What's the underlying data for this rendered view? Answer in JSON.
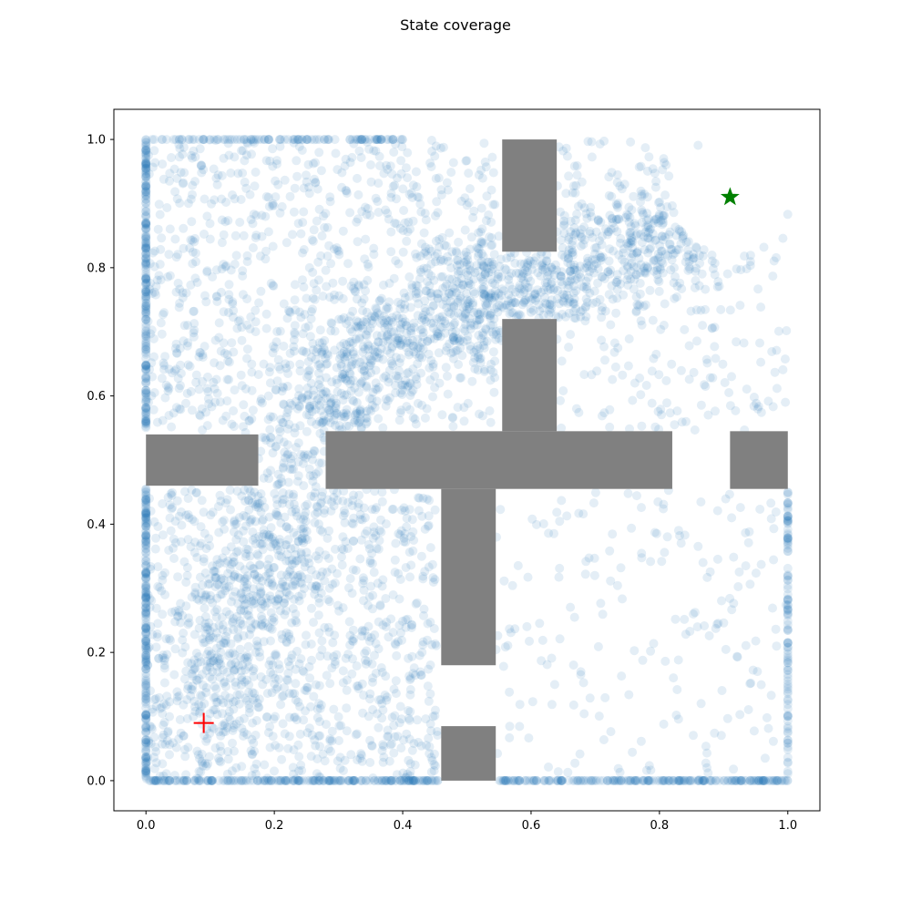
{
  "chart_data": {
    "type": "scatter",
    "title": "State coverage",
    "xlabel": "",
    "ylabel": "",
    "xlim": [
      -0.05,
      1.05
    ],
    "ylim": [
      -0.047,
      1.047
    ],
    "xticks": [
      0.0,
      0.2,
      0.4,
      0.6,
      0.8,
      1.0
    ],
    "xtick_labels": [
      "0.0",
      "0.2",
      "0.4",
      "0.6",
      "0.8",
      "1.0"
    ],
    "yticks": [
      0.0,
      0.2,
      0.4,
      0.6,
      0.8,
      1.0
    ],
    "ytick_labels": [
      "0.0",
      "0.2",
      "0.4",
      "0.6",
      "0.8",
      "1.0"
    ],
    "grid": false,
    "point_color": "#1f77b4",
    "point_alpha": 0.12,
    "obstacle_color": "#808080",
    "obstacles": [
      {
        "x0": 0.0,
        "x1": 0.175,
        "y0": 0.46,
        "y1": 0.54
      },
      {
        "x0": 0.28,
        "x1": 0.82,
        "y0": 0.455,
        "y1": 0.545
      },
      {
        "x0": 0.555,
        "x1": 0.64,
        "y0": 0.825,
        "y1": 1.0
      },
      {
        "x0": 0.555,
        "x1": 0.64,
        "y0": 0.545,
        "y1": 0.72
      },
      {
        "x0": 0.46,
        "x1": 0.545,
        "y0": 0.18,
        "y1": 0.455
      },
      {
        "x0": 0.46,
        "x1": 0.545,
        "y0": 0.0,
        "y1": 0.085
      },
      {
        "x0": 0.91,
        "x1": 1.0,
        "y0": 0.455,
        "y1": 0.545
      }
    ],
    "start": {
      "x": 0.09,
      "y": 0.09,
      "marker": "plus",
      "color": "#ff0000"
    },
    "goal": {
      "x": 0.91,
      "y": 0.91,
      "radius": 0.09,
      "marker": "star",
      "color": "#008000"
    },
    "visit_density": [
      {
        "region": "lower-left room",
        "x0": 0.0,
        "x1": 0.455,
        "y0": 0.0,
        "y1": 0.455,
        "level": "dense"
      },
      {
        "region": "upper-left room",
        "x0": 0.0,
        "x1": 0.545,
        "y0": 0.545,
        "y1": 1.0,
        "level": "dense"
      },
      {
        "region": "upper-right room",
        "x0": 0.64,
        "x1": 1.0,
        "y0": 0.545,
        "y1": 1.0,
        "level": "medium"
      },
      {
        "region": "lower-right room",
        "x0": 0.545,
        "x1": 1.0,
        "y0": 0.0,
        "y1": 0.455,
        "level": "sparse"
      }
    ],
    "path": [
      {
        "x": 0.09,
        "y": 0.09
      },
      {
        "x": 0.17,
        "y": 0.28
      },
      {
        "x": 0.23,
        "y": 0.5
      },
      {
        "x": 0.33,
        "y": 0.66
      },
      {
        "x": 0.5,
        "y": 0.75
      },
      {
        "x": 0.6,
        "y": 0.775
      },
      {
        "x": 0.75,
        "y": 0.83
      },
      {
        "x": 0.88,
        "y": 0.89
      }
    ]
  }
}
